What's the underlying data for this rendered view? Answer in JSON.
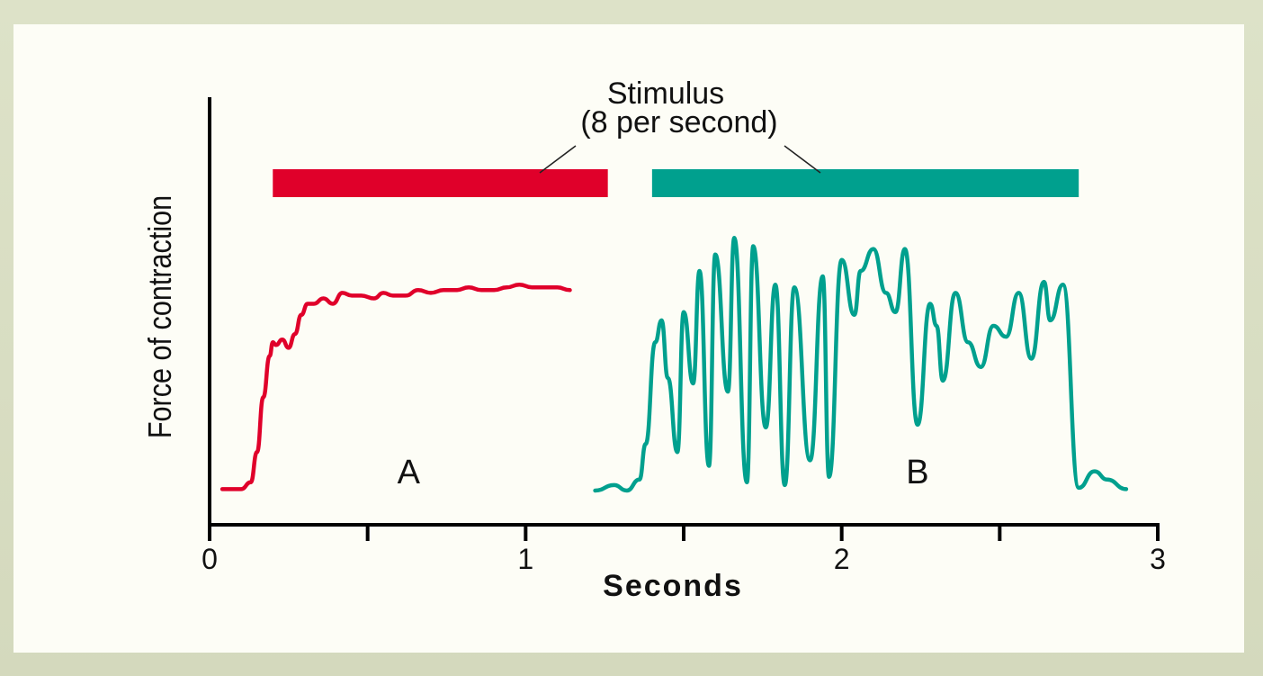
{
  "chart_data": {
    "type": "line",
    "title": "",
    "xlabel": "Seconds",
    "ylabel": "Force of contraction",
    "xlim": [
      0,
      3
    ],
    "ylim": [
      0,
      10
    ],
    "x_ticks": [
      {
        "value": 0,
        "label": "0"
      },
      {
        "value": 0.5,
        "label": ""
      },
      {
        "value": 1,
        "label": "1"
      },
      {
        "value": 1.5,
        "label": ""
      },
      {
        "value": 2,
        "label": "2"
      },
      {
        "value": 2.5,
        "label": ""
      },
      {
        "value": 3,
        "label": "3"
      }
    ],
    "stimulus": {
      "label_line1": "Stimulus",
      "label_line2": "(8 per second)",
      "bars": [
        {
          "name": "A",
          "start": 0.2,
          "end": 1.26,
          "color": "#e0002a"
        },
        {
          "name": "B",
          "start": 1.4,
          "end": 2.75,
          "color": "#00a08e"
        }
      ]
    },
    "series": [
      {
        "name": "A",
        "color": "#e0002a",
        "x": [
          0.04,
          0.1,
          0.13,
          0.15,
          0.17,
          0.19,
          0.2,
          0.21,
          0.23,
          0.25,
          0.27,
          0.29,
          0.31,
          0.33,
          0.36,
          0.39,
          0.42,
          0.45,
          0.48,
          0.52,
          0.55,
          0.58,
          0.62,
          0.66,
          0.7,
          0.74,
          0.78,
          0.82,
          0.86,
          0.9,
          0.94,
          0.98,
          1.02,
          1.06,
          1.1,
          1.14
        ],
        "y": [
          0.15,
          0.15,
          0.4,
          1.5,
          3.5,
          5.0,
          5.5,
          5.4,
          5.6,
          5.3,
          5.8,
          6.5,
          6.9,
          6.9,
          7.1,
          6.9,
          7.3,
          7.2,
          7.2,
          7.1,
          7.3,
          7.2,
          7.2,
          7.4,
          7.3,
          7.4,
          7.4,
          7.5,
          7.4,
          7.4,
          7.5,
          7.6,
          7.5,
          7.5,
          7.5,
          7.4
        ]
      },
      {
        "name": "B",
        "color": "#00a08e",
        "x": [
          1.22,
          1.28,
          1.32,
          1.36,
          1.38,
          1.41,
          1.43,
          1.45,
          1.48,
          1.5,
          1.53,
          1.55,
          1.58,
          1.6,
          1.64,
          1.66,
          1.7,
          1.72,
          1.76,
          1.79,
          1.82,
          1.85,
          1.9,
          1.94,
          1.96,
          2.0,
          2.04,
          2.06,
          2.1,
          2.14,
          2.17,
          2.2,
          2.24,
          2.28,
          2.3,
          2.32,
          2.36,
          2.4,
          2.44,
          2.48,
          2.52,
          2.56,
          2.6,
          2.64,
          2.66,
          2.7,
          2.75,
          2.8,
          2.84,
          2.9
        ],
        "y": [
          0.1,
          0.3,
          0.1,
          0.5,
          1.8,
          5.5,
          6.3,
          4.2,
          1.5,
          6.6,
          4.0,
          8.1,
          1.0,
          8.7,
          3.7,
          9.3,
          0.4,
          9.0,
          2.4,
          7.6,
          0.3,
          7.5,
          1.2,
          7.9,
          0.6,
          8.5,
          6.5,
          8.1,
          8.9,
          7.3,
          6.6,
          8.9,
          2.5,
          6.9,
          6.1,
          4.1,
          7.3,
          5.5,
          4.6,
          6.1,
          5.7,
          7.3,
          4.9,
          7.7,
          6.3,
          7.6,
          0.2,
          0.8,
          0.5,
          0.15
        ]
      }
    ],
    "annotations": [
      {
        "text": "A",
        "x": 0.63,
        "y": 0.5
      },
      {
        "text": "B",
        "x": 2.24,
        "y": 0.5
      }
    ]
  }
}
